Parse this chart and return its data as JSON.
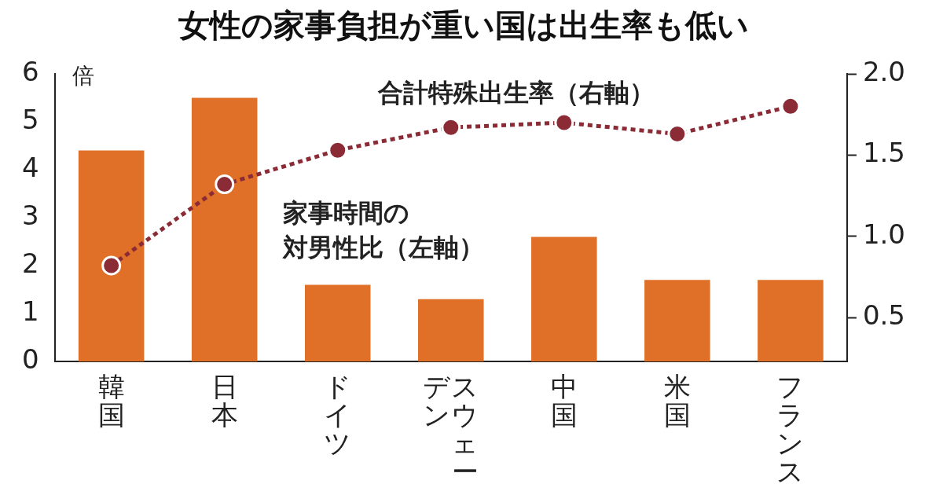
{
  "chart_data": {
    "type": "bar",
    "title": "女性の家事負担が重い国は出生率も低い",
    "ylabel": "倍",
    "categories": [
      "韓国",
      "日本",
      "ドイツ",
      "スウェーデン",
      "中国",
      "米国",
      "フランス"
    ],
    "series": [
      {
        "name": "家事時間の対男性比（左軸）",
        "color": "#e07028",
        "values": [
          4.4,
          5.5,
          1.6,
          1.3,
          2.6,
          1.7,
          1.7
        ]
      },
      {
        "name": "合計特殊出生率（右軸）",
        "type": "line",
        "axis": "y2",
        "color": "#8b2b35",
        "values": [
          0.82,
          1.32,
          1.53,
          1.67,
          1.7,
          1.63,
          1.8
        ]
      }
    ],
    "ylim": [
      0,
      6
    ],
    "yticks": [
      0,
      1,
      2,
      3,
      4,
      5,
      6
    ],
    "y2lim": [
      0.23,
      2.0
    ],
    "y2ticks": [
      {
        "value": 0.5,
        "label": "0.5"
      },
      {
        "value": 1,
        "label": "1.0"
      },
      {
        "value": 1.5,
        "label": "1.5"
      },
      {
        "value": 2,
        "label": "2.0"
      }
    ],
    "grid": false,
    "legend": false,
    "marker": "circle",
    "line_style": "dotted"
  }
}
